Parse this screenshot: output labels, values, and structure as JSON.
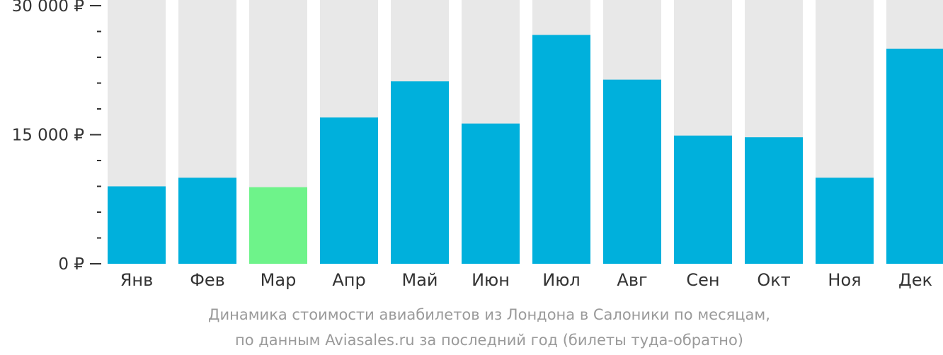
{
  "chart_data": {
    "type": "bar",
    "categories": [
      "Янв",
      "Фев",
      "Мар",
      "Апр",
      "Май",
      "Июн",
      "Июл",
      "Авг",
      "Сен",
      "Окт",
      "Ноя",
      "Дек"
    ],
    "values": [
      9000,
      10000,
      8900,
      17000,
      21200,
      16300,
      26600,
      21400,
      14900,
      14700,
      10000,
      25000
    ],
    "ylim": [
      0,
      30000
    ],
    "yticks": [
      0,
      15000,
      30000
    ],
    "ytick_labels": [
      "0 ₽",
      "15 000 ₽",
      "30 000 ₽"
    ],
    "minor_ticks_between": 4,
    "highlight_index": 2,
    "colors": {
      "bar": "#00b0dc",
      "highlight": "#6ef38a",
      "track": "#e8e8e8",
      "axis": "#333333"
    }
  },
  "caption": {
    "line1": "Динамика стоимости авиабилетов из Лондона в Салоники по месяцам,",
    "line2": "по данным Aviasales.ru за последний год (билеты туда-обратно)"
  }
}
